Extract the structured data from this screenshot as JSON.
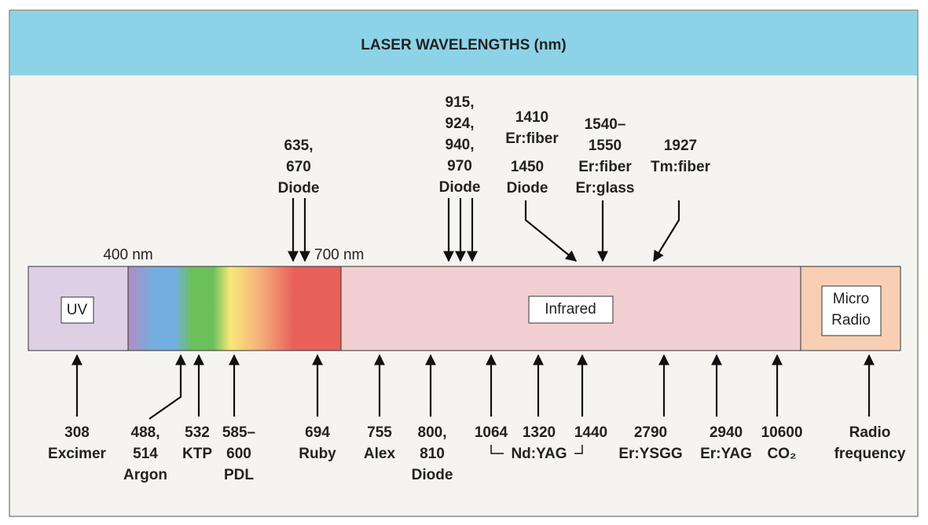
{
  "header": {
    "title": "LASER WAVELENGTHS (nm)"
  },
  "spectrum": {
    "markers": [
      "400 nm",
      "700 nm"
    ],
    "regions": [
      {
        "label": [
          "UV"
        ]
      },
      {
        "label": [
          "Infrared"
        ]
      },
      {
        "label": [
          "Micro",
          "Radio"
        ]
      }
    ]
  },
  "top_labels": [
    [
      "635,",
      "670",
      "Diode"
    ],
    [
      "915,",
      "924,",
      "940,",
      "970",
      "Diode"
    ],
    [
      "1410",
      "Er:fiber"
    ],
    [
      "1450",
      "Diode"
    ],
    [
      "1540–",
      "1550",
      "Er:fiber",
      "Er:glass"
    ],
    [
      "1927",
      "Tm:fiber"
    ]
  ],
  "bottom_labels": [
    [
      "308",
      "Excimer"
    ],
    [
      "488,",
      "514",
      "Argon"
    ],
    [
      "532",
      "KTP"
    ],
    [
      "585–",
      "600",
      "PDL"
    ],
    [
      "694",
      "Ruby"
    ],
    [
      "755",
      "Alex"
    ],
    [
      "800,",
      "810",
      "Diode"
    ],
    [
      "1064"
    ],
    [
      "1320"
    ],
    [
      "1440"
    ],
    [
      "Nd:YAG"
    ],
    [
      "2790",
      "Er:YSGG"
    ],
    [
      "2940",
      "Er:YAG"
    ],
    [
      "10600",
      "CO₂"
    ],
    [
      "Radio",
      "frequency"
    ]
  ]
}
